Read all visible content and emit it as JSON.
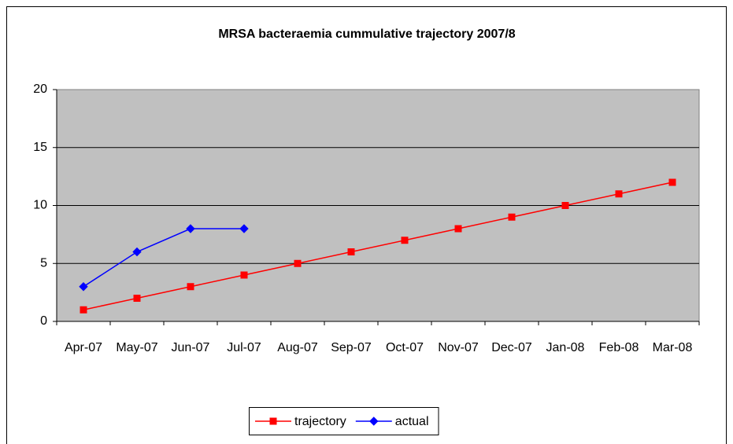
{
  "chart_data": {
    "type": "line",
    "title": "MRSA bacteraemia cummulative trajectory 2007/8",
    "categories": [
      "Apr-07",
      "May-07",
      "Jun-07",
      "Jul-07",
      "Aug-07",
      "Sep-07",
      "Oct-07",
      "Nov-07",
      "Dec-07",
      "Jan-08",
      "Feb-08",
      "Mar-08"
    ],
    "series": [
      {
        "name": "trajectory",
        "color": "#ff0000",
        "marker": "square",
        "values": [
          1,
          2,
          3,
          4,
          5,
          6,
          7,
          8,
          9,
          10,
          11,
          12
        ]
      },
      {
        "name": "actual",
        "color": "#0000ff",
        "marker": "diamond",
        "values": [
          3,
          6,
          8,
          8,
          null,
          null,
          null,
          null,
          null,
          null,
          null,
          null
        ]
      }
    ],
    "ylim": [
      0,
      20
    ],
    "yticks": [
      0,
      5,
      10,
      15,
      20
    ],
    "grid": true,
    "legend": "bottom"
  }
}
